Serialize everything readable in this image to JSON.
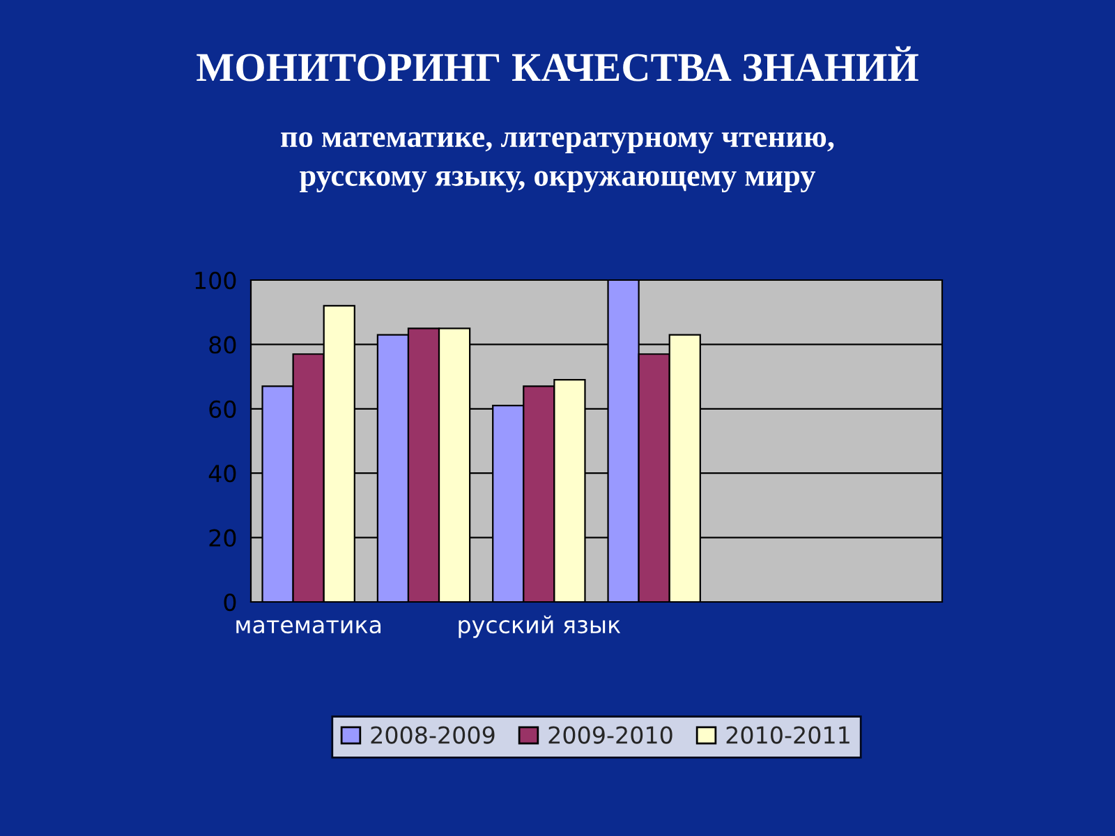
{
  "chart_data": {
    "type": "bar",
    "title": "МОНИТОРИНГ КАЧЕСТВА ЗНАНИЙ",
    "subtitle": "по математике, литературному чтению,\nрусскому языку, окружающему миру",
    "categories": [
      "математика",
      null,
      "русский язык",
      null,
      null,
      null
    ],
    "series": [
      {
        "name": "2008-2009",
        "color": "#9999ff",
        "values": [
          67,
          83,
          61,
          100,
          null,
          null
        ]
      },
      {
        "name": "2009-2010",
        "color": "#993366",
        "values": [
          77,
          85,
          67,
          77,
          null,
          null
        ]
      },
      {
        "name": "2010-2011",
        "color": "#ffffcc",
        "values": [
          92,
          85,
          69,
          83,
          null,
          null
        ]
      }
    ],
    "ylim": [
      0,
      100
    ],
    "yticks": [
      0,
      20,
      40,
      60,
      80,
      100
    ],
    "grid": "y",
    "legend": "bottom"
  }
}
